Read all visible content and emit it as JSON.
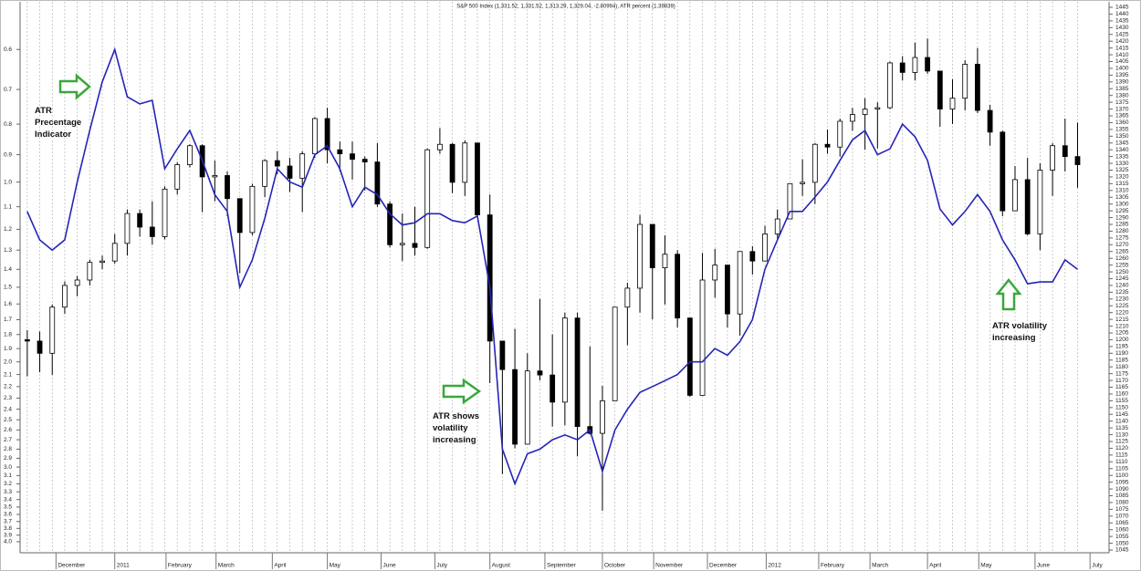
{
  "chart_data": {
    "type": "candlestick",
    "title": "S&P 500 Index (1,331.52, 1,331.52, 1,313.29, 1,329.04, -2.80994), ATR percent (1.39839)",
    "annotations": [
      "ATR Precentage Indicator",
      "ATR shows volatility increasing",
      "ATR volatility increasing"
    ],
    "x": [
      0,
      1,
      2,
      3,
      4,
      5,
      6,
      7,
      8,
      9,
      10,
      11,
      12,
      13,
      14,
      15,
      16,
      17,
      18,
      19,
      20,
      21,
      22,
      23,
      24,
      25,
      26,
      27,
      28,
      29,
      30,
      31,
      32,
      33,
      34,
      35,
      36,
      37,
      38,
      39,
      40,
      41,
      42,
      43,
      44,
      45,
      46,
      47,
      48,
      49,
      50,
      51,
      52,
      53,
      54,
      55,
      56,
      57,
      58,
      59,
      60,
      61,
      62,
      63,
      64,
      65,
      66,
      67,
      68,
      69,
      70,
      71,
      72,
      73,
      74,
      75,
      76,
      77,
      78,
      79,
      80,
      81,
      82,
      83,
      84
    ],
    "xlim": [
      -0.5,
      86.3
    ],
    "xticks": [
      {
        "value": 2.3,
        "label": "December"
      },
      {
        "value": 7,
        "label": "2011"
      },
      {
        "value": 11.1,
        "label": "February"
      },
      {
        "value": 15.1,
        "label": "March"
      },
      {
        "value": 19.6,
        "label": "April"
      },
      {
        "value": 24,
        "label": "May"
      },
      {
        "value": 28.3,
        "label": "June"
      },
      {
        "value": 32.6,
        "label": "July"
      },
      {
        "value": 37,
        "label": "August"
      },
      {
        "value": 41.4,
        "label": "September"
      },
      {
        "value": 46,
        "label": "October"
      },
      {
        "value": 50.1,
        "label": "November"
      },
      {
        "value": 54.4,
        "label": "December"
      },
      {
        "value": 59.1,
        "label": "2012"
      },
      {
        "value": 63.3,
        "label": "February"
      },
      {
        "value": 67.4,
        "label": "March"
      },
      {
        "value": 72,
        "label": "April"
      },
      {
        "value": 76.1,
        "label": "May"
      },
      {
        "value": 80.6,
        "label": "June"
      },
      {
        "value": 85,
        "label": "July"
      }
    ],
    "grid": true,
    "yscale": "log",
    "ylim": [
      4.13,
      0.51
    ],
    "yticks": [
      0.6,
      0.7,
      0.8,
      0.9,
      {
        "value": 1,
        "label": "1.0"
      },
      1.1,
      1.2,
      1.3,
      1.4,
      1.5,
      1.6,
      1.7,
      1.8,
      1.9,
      {
        "value": 2,
        "label": "2.0"
      },
      2.1,
      2.2,
      2.3,
      2.4,
      2.5,
      2.6,
      2.7,
      2.8,
      2.9,
      {
        "value": 3,
        "label": "3.0"
      },
      3.1,
      3.2,
      3.3,
      3.4,
      3.5,
      3.6,
      3.7,
      3.8,
      3.9,
      {
        "value": 4,
        "label": "4.0"
      }
    ],
    "y2lim": [
      1045,
      1445
    ],
    "y2ticks": [
      1045,
      1050,
      1055,
      1060,
      1065,
      1070,
      1075,
      1080,
      1085,
      1090,
      1095,
      1100,
      1105,
      1110,
      1115,
      1120,
      1125,
      1130,
      1135,
      1140,
      1145,
      1150,
      1155,
      1160,
      1165,
      1170,
      1175,
      1180,
      1185,
      1190,
      1195,
      1200,
      1205,
      1210,
      1215,
      1220,
      1225,
      1230,
      1235,
      1240,
      1245,
      1250,
      1255,
      1260,
      1265,
      1270,
      1275,
      1280,
      1285,
      1290,
      1295,
      1300,
      1305,
      1310,
      1315,
      1320,
      1325,
      1330,
      1335,
      1340,
      1345,
      1350,
      1355,
      1360,
      1365,
      1370,
      1375,
      1380,
      1385,
      1390,
      1395,
      1400,
      1405,
      1410,
      1415,
      1420,
      1425,
      1430,
      1435,
      1440,
      1445
    ],
    "series": [
      {
        "type": "candlestick",
        "axis": "y2",
        "color": "#000000",
        "open": [
          1200,
          1199,
          1190,
          1224,
          1240,
          1244,
          1257,
          1258,
          1271,
          1293,
          1283,
          1276,
          1311,
          1329,
          1343,
          1320,
          1321,
          1304,
          1279,
          1313,
          1332,
          1328,
          1319,
          1337,
          1363,
          1340,
          1337,
          1333,
          1331,
          1300,
          1270,
          1271,
          1268,
          1340,
          1344,
          1316,
          1345,
          1292,
          1199,
          1178,
          1123,
          1177,
          1174,
          1154,
          1216,
          1136,
          1131,
          1155,
          1224,
          1238,
          1285,
          1253,
          1263,
          1216,
          1159,
          1244,
          1255,
          1219,
          1265,
          1258,
          1278,
          1289,
          1315,
          1316,
          1344,
          1342,
          1361,
          1366,
          1370,
          1371,
          1404,
          1397,
          1408,
          1398,
          1370,
          1378,
          1403,
          1369,
          1353,
          1295,
          1318,
          1278,
          1325,
          1343,
          1335
        ],
        "high": [
          1207,
          1206,
          1226,
          1243,
          1247,
          1259,
          1262,
          1278,
          1296,
          1296,
          1302,
          1313,
          1331,
          1344,
          1344,
          1332,
          1324,
          1304,
          1315,
          1333,
          1339,
          1334,
          1339,
          1364,
          1371,
          1346,
          1346,
          1335,
          1345,
          1302,
          1293,
          1298,
          1341,
          1356,
          1345,
          1347,
          1345,
          1307,
          1199,
          1208,
          1190,
          1230,
          1204,
          1220,
          1220,
          1195,
          1166,
          1224,
          1242,
          1292,
          1285,
          1277,
          1266,
          1216,
          1264,
          1267,
          1255,
          1265,
          1269,
          1284,
          1296,
          1315,
          1333,
          1345,
          1355,
          1363,
          1371,
          1378,
          1375,
          1405,
          1409,
          1419,
          1422,
          1398,
          1392,
          1406,
          1415,
          1373,
          1354,
          1328,
          1334,
          1330,
          1345,
          1363,
          1360
        ],
        "low": [
          1173,
          1176,
          1174,
          1219,
          1232,
          1240,
          1252,
          1256,
          1262,
          1276,
          1270,
          1274,
          1307,
          1327,
          1294,
          1302,
          1291,
          1249,
          1277,
          1305,
          1322,
          1309,
          1294,
          1334,
          1330,
          1324,
          1318,
          1310,
          1298,
          1268,
          1258,
          1262,
          1267,
          1337,
          1308,
          1306,
          1290,
          1168,
          1101,
          1120,
          1123,
          1170,
          1136,
          1137,
          1114,
          1130,
          1074,
          1155,
          1196,
          1220,
          1215,
          1226,
          1209,
          1158,
          1159,
          1231,
          1209,
          1203,
          1248,
          1258,
          1274,
          1289,
          1306,
          1300,
          1337,
          1335,
          1354,
          1340,
          1341,
          1370,
          1391,
          1391,
          1396,
          1357,
          1359,
          1369,
          1367,
          1343,
          1291,
          1295,
          1277,
          1266,
          1306,
          1324,
          1312
        ],
        "close": [
          1199,
          1190,
          1224,
          1240,
          1244,
          1257,
          1258,
          1271,
          1293,
          1283,
          1276,
          1311,
          1329,
          1343,
          1320,
          1321,
          1304,
          1279,
          1313,
          1332,
          1328,
          1319,
          1337,
          1363,
          1340,
          1337,
          1333,
          1331,
          1300,
          1270,
          1271,
          1268,
          1340,
          1344,
          1316,
          1345,
          1292,
          1199,
          1178,
          1123,
          1177,
          1174,
          1154,
          1216,
          1136,
          1131,
          1155,
          1224,
          1238,
          1285,
          1253,
          1263,
          1216,
          1159,
          1244,
          1255,
          1219,
          1265,
          1258,
          1278,
          1289,
          1315,
          1316,
          1344,
          1342,
          1361,
          1366,
          1370,
          1371,
          1404,
          1397,
          1408,
          1398,
          1370,
          1378,
          1403,
          1369,
          1353,
          1295,
          1318,
          1278,
          1325,
          1343,
          1335,
          1329
        ]
      },
      {
        "type": "line",
        "axis": "y",
        "color": "#2424b8",
        "values": [
          1.12,
          1.25,
          1.3,
          1.25,
          1.0,
          0.82,
          0.68,
          0.6,
          0.72,
          0.74,
          0.73,
          0.95,
          0.88,
          0.82,
          0.92,
          1.05,
          1.12,
          1.5,
          1.35,
          1.15,
          0.95,
          1.0,
          1.02,
          0.9,
          0.87,
          0.95,
          1.1,
          1.02,
          1.05,
          1.13,
          1.18,
          1.17,
          1.13,
          1.13,
          1.16,
          1.17,
          1.14,
          1.5,
          2.8,
          3.2,
          2.85,
          2.8,
          2.7,
          2.65,
          2.7,
          2.6,
          3.05,
          2.6,
          2.4,
          2.25,
          2.2,
          2.15,
          2.1,
          2.0,
          2.0,
          1.9,
          1.95,
          1.85,
          1.7,
          1.4,
          1.25,
          1.12,
          1.12,
          1.06,
          1.0,
          0.92,
          0.85,
          0.82,
          0.9,
          0.88,
          0.8,
          0.84,
          0.92,
          1.11,
          1.18,
          1.12,
          1.05,
          1.12,
          1.25,
          1.35,
          1.48,
          1.47,
          1.47,
          1.35,
          1.4
        ]
      }
    ]
  }
}
